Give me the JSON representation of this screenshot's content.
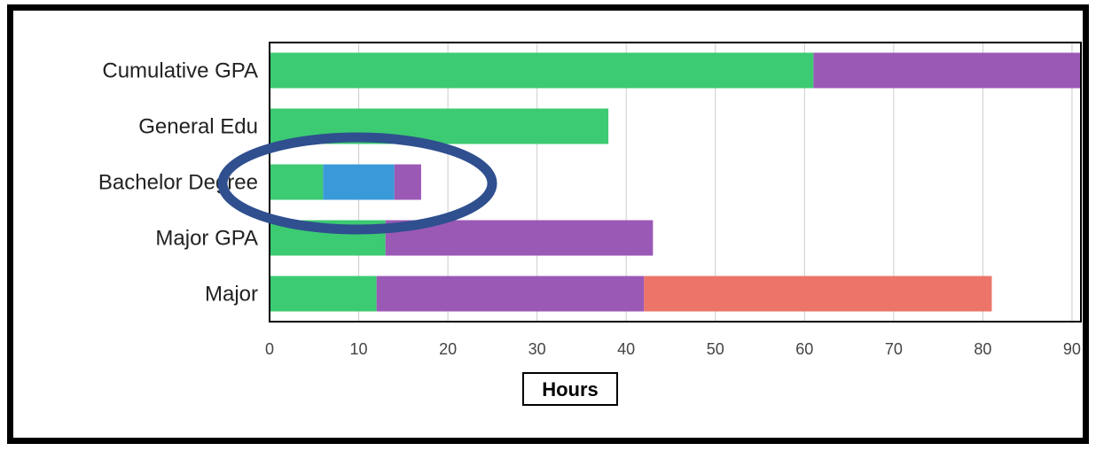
{
  "chart_data": {
    "type": "bar",
    "orientation": "horizontal",
    "stacked": true,
    "categories": [
      "Cumulative GPA",
      "General Edu",
      "Bachelor Degree",
      "Major GPA",
      "Major"
    ],
    "series": [
      {
        "color": "#3cca72",
        "values": [
          61,
          38,
          6,
          13,
          12
        ]
      },
      {
        "color": "#3a9ad9",
        "values": [
          0,
          0,
          8,
          0,
          0
        ]
      },
      {
        "color": "#9b59b6",
        "values": [
          30,
          0,
          3,
          30,
          30
        ]
      },
      {
        "color": "#ec7468",
        "values": [
          0,
          0,
          0,
          0,
          39
        ]
      }
    ],
    "xlabel": "Hours",
    "xlim": [
      0,
      91
    ],
    "xticks": [
      0,
      10,
      20,
      30,
      40,
      50,
      60,
      70,
      80,
      90
    ],
    "grid": true,
    "annotation": {
      "shape": "ellipse",
      "target": "Bachelor Degree",
      "color": "#2f4f8f"
    }
  }
}
